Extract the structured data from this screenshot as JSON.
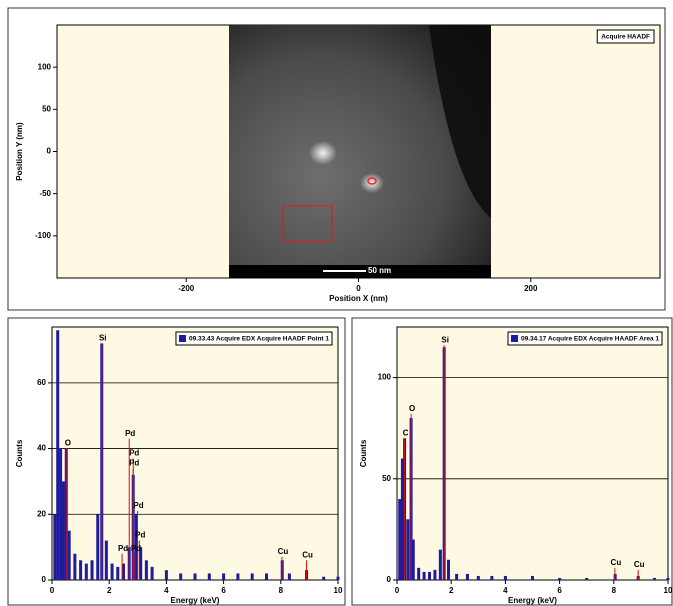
{
  "chart_data": [
    {
      "type": "image",
      "legend": "Acquire HAADF",
      "xlabel": "Position X (nm)",
      "ylabel": "Position Y (nm)",
      "xlim": [
        -350,
        350
      ],
      "ylim": [
        -150,
        150
      ],
      "xticks": [
        -200,
        0,
        200
      ],
      "yticks": [
        -100,
        -50,
        0,
        50,
        100
      ],
      "scale_bar": "50 nm"
    },
    {
      "type": "spectrum",
      "xlabel": "Energy (keV)",
      "ylabel": "Counts",
      "xlim": [
        0,
        10
      ],
      "ylim": [
        0,
        77
      ],
      "xticks": [
        0,
        2,
        4,
        6,
        8,
        10
      ],
      "yticks": [
        0,
        20,
        40,
        60
      ],
      "grid": true,
      "series": [
        {
          "name": "09.33.43 Acquire EDX Acquire HAADF Point 1",
          "color": "#1c1c9c",
          "x": [
            0.1,
            0.2,
            0.3,
            0.4,
            0.5,
            0.6,
            0.8,
            1.0,
            1.2,
            1.4,
            1.6,
            1.74,
            1.9,
            2.1,
            2.3,
            2.5,
            2.7,
            2.84,
            2.95,
            3.1,
            3.3,
            3.5,
            4.0,
            4.5,
            5.0,
            5.5,
            6.0,
            6.5,
            7.0,
            7.5,
            8.05,
            8.3,
            8.9,
            9.5,
            10.0
          ],
          "values": [
            20,
            76,
            40,
            30,
            40,
            15,
            8,
            6,
            5,
            6,
            20,
            72,
            12,
            5,
            4,
            5,
            10,
            32,
            20,
            10,
            6,
            4,
            3,
            2,
            2,
            2,
            2,
            2,
            2,
            2,
            6,
            2,
            3,
            1,
            1
          ]
        }
      ],
      "peak_color": "#d01010",
      "peak_labels": [
        "Si",
        "O",
        "Pd",
        "Pd",
        "Pd",
        "Pd",
        "Pd",
        "Pd",
        "Pd",
        "Cu",
        "Cu"
      ],
      "peak_x": [
        1.74,
        0.52,
        2.7,
        2.84,
        2.84,
        2.99,
        3.05,
        2.45,
        2.9,
        8.04,
        8.9
      ],
      "peak_y": [
        72,
        40,
        43,
        37,
        34,
        21,
        12,
        8,
        8,
        7,
        6
      ]
    },
    {
      "type": "spectrum",
      "xlabel": "Energy (keV)",
      "ylabel": "Counts",
      "xlim": [
        0,
        10
      ],
      "ylim": [
        0,
        125
      ],
      "xticks": [
        0,
        2,
        4,
        6,
        8,
        10
      ],
      "yticks": [
        0,
        50,
        100
      ],
      "grid": true,
      "series": [
        {
          "name": "09.34.17 Acquire EDX Acquire HAADF Area 1",
          "color": "#1c1c9c",
          "x": [
            0.1,
            0.2,
            0.28,
            0.4,
            0.52,
            0.6,
            0.8,
            1.0,
            1.2,
            1.4,
            1.6,
            1.74,
            1.9,
            2.2,
            2.6,
            3.0,
            3.5,
            4.0,
            5.0,
            6.0,
            7.0,
            8.05,
            8.9,
            9.5,
            10.0
          ],
          "values": [
            40,
            60,
            70,
            30,
            80,
            20,
            6,
            4,
            4,
            5,
            15,
            115,
            10,
            3,
            3,
            2,
            2,
            2,
            2,
            1,
            1,
            3,
            2,
            1,
            1
          ]
        }
      ],
      "peak_color": "#d01010",
      "peak_labels": [
        "Si",
        "O",
        "C",
        "Cu",
        "Cu"
      ],
      "peak_x": [
        1.74,
        0.52,
        0.28,
        8.04,
        8.9
      ],
      "peak_y": [
        116,
        82,
        70,
        6,
        5
      ]
    }
  ]
}
